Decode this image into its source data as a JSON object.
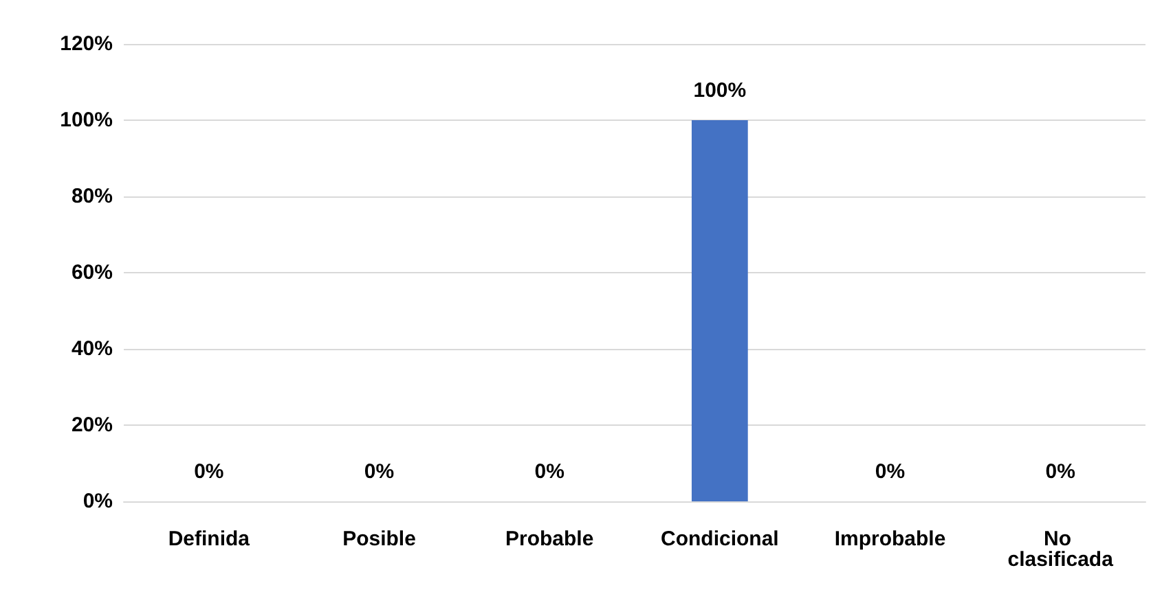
{
  "chart_data": {
    "type": "bar",
    "categories": [
      "Definida",
      "Posible",
      "Probable",
      "Condicional",
      "Improbable",
      "No clasificada"
    ],
    "values": [
      0,
      0,
      0,
      100,
      0,
      0
    ],
    "color": "#4472c4",
    "value_labels": [
      "0%",
      "0%",
      "0%",
      "100%",
      "0%",
      "0%"
    ],
    "ylim": [
      0,
      120
    ],
    "yticks": [
      {
        "value": 0,
        "label": "0%"
      },
      {
        "value": 20,
        "label": "20%"
      },
      {
        "value": 40,
        "label": "40%"
      },
      {
        "value": 60,
        "label": "60%"
      },
      {
        "value": 80,
        "label": "80%"
      },
      {
        "value": 100,
        "label": "100%"
      },
      {
        "value": 120,
        "label": "120%"
      }
    ],
    "grid": "y"
  }
}
